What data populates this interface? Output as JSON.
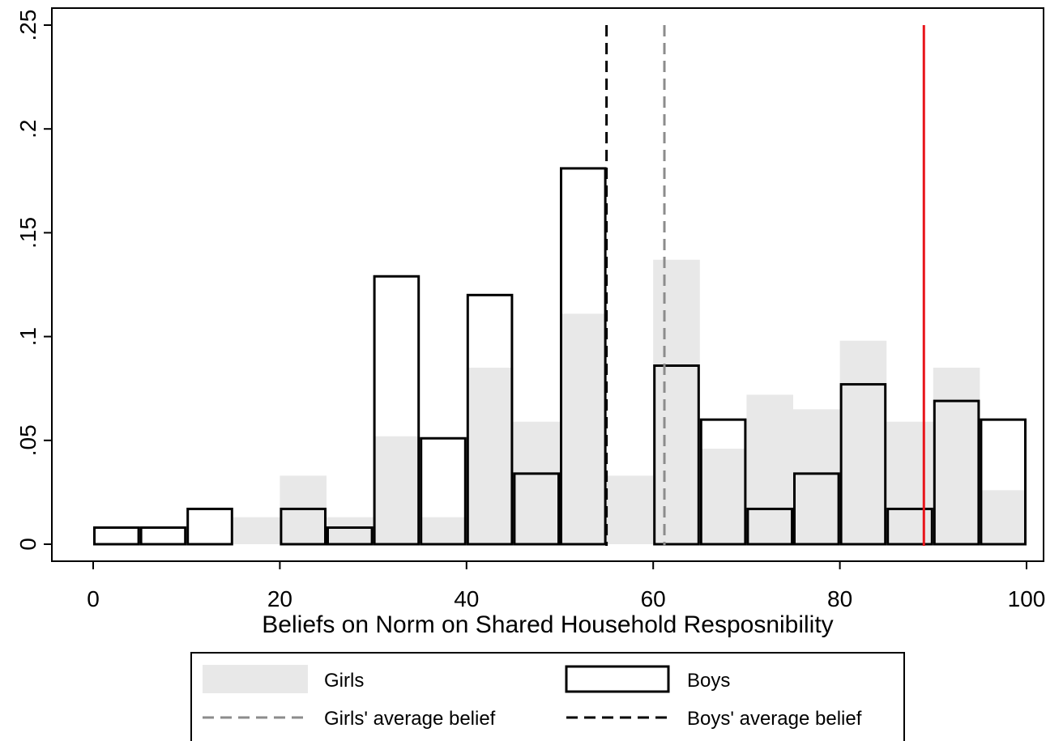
{
  "chart_data": {
    "type": "bar",
    "xlabel": "Beliefs on Norm on Shared Household Resposnibility",
    "ylabel": "",
    "xlim": [
      0,
      100
    ],
    "ylim": [
      0,
      0.25
    ],
    "x_ticks": [
      0,
      20,
      40,
      60,
      80,
      100
    ],
    "x_tick_labels": [
      "0",
      "20",
      "40",
      "60",
      "80",
      "100"
    ],
    "y_ticks": [
      0,
      0.05,
      0.1,
      0.15,
      0.2,
      0.25
    ],
    "y_tick_labels": [
      "0",
      ".05",
      ".1",
      ".15",
      ".2",
      ".25"
    ],
    "bin_edges": [
      0,
      5,
      10,
      15,
      20,
      25,
      30,
      35,
      40,
      45,
      50,
      55,
      60,
      65,
      70,
      75,
      80,
      85,
      90,
      95,
      100
    ],
    "series": [
      {
        "name": "Girls",
        "style": "filled",
        "color": "#e8e8e8",
        "values": [
          0,
          0,
          0,
          0.013,
          0.033,
          0.013,
          0.052,
          0.013,
          0.085,
          0.059,
          0.111,
          0.033,
          0.137,
          0.046,
          0.072,
          0.065,
          0.098,
          0.059,
          0.085,
          0.026
        ]
      },
      {
        "name": "Boys",
        "style": "outline",
        "color": "#000000",
        "values": [
          0.008,
          0.008,
          0.017,
          0,
          0.017,
          0.008,
          0.129,
          0.051,
          0.12,
          0.034,
          0.181,
          0,
          0.086,
          0.06,
          0.017,
          0.034,
          0.077,
          0.017,
          0.069,
          0.06
        ]
      }
    ],
    "reference_lines": [
      {
        "name": "Girls' average belief",
        "x": 61.2,
        "color": "#8c8c8c",
        "dash": "dashed"
      },
      {
        "name": "Boys' average belief",
        "x": 55,
        "color": "#000000",
        "dash": "dashed"
      },
      {
        "x": 89,
        "color": "#e8151b",
        "dash": "solid"
      }
    ],
    "legend": {
      "position": "bottom",
      "items": [
        "Girls",
        "Boys",
        "Girls' average belief",
        "Boys' average belief"
      ]
    },
    "grid": false
  }
}
